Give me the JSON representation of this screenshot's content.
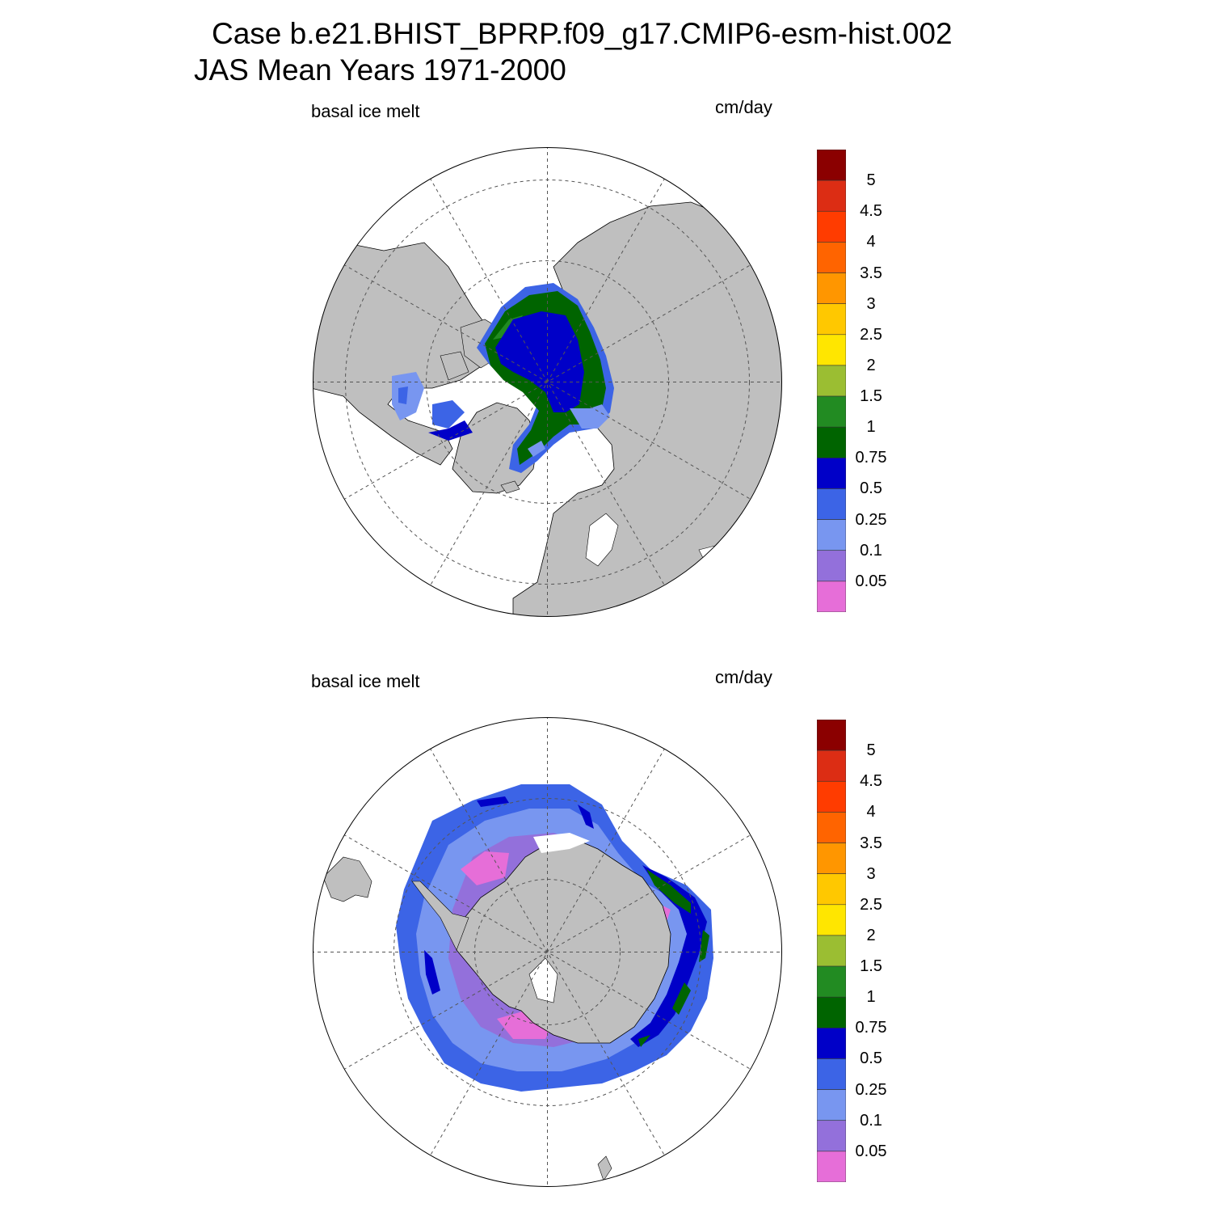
{
  "header": {
    "title_line1": "Case b.e21.BHIST_BPRP.f09_g17.CMIP6-esm-hist.002",
    "title_line2": "JAS Mean   Years 1971-2000"
  },
  "panels": [
    {
      "id": "north",
      "hemisphere": "arctic",
      "left_label": "basal ice melt",
      "right_label": "cm/day"
    },
    {
      "id": "south",
      "hemisphere": "antarctic",
      "left_label": "basal ice melt",
      "right_label": "cm/day"
    }
  ],
  "colorbar": {
    "labels": [
      "5",
      "4.5",
      "4",
      "3.5",
      "3",
      "2.5",
      "2",
      "1.5",
      "1",
      "0.75",
      "0.5",
      "0.25",
      "0.1",
      "0.05"
    ],
    "colors_top_to_bottom": [
      "#8b0000",
      "#dc2d14",
      "#ff3c00",
      "#ff6400",
      "#ff9600",
      "#ffc800",
      "#ffe600",
      "#9bbe32",
      "#228b22",
      "#006400",
      "#0000c8",
      "#3c64e6",
      "#7896f0",
      "#9370db",
      "#e66ed8"
    ]
  },
  "map_colors": {
    "land": "#bfbfbf",
    "ocean": "#ffffff",
    "grid": "#555555"
  }
}
